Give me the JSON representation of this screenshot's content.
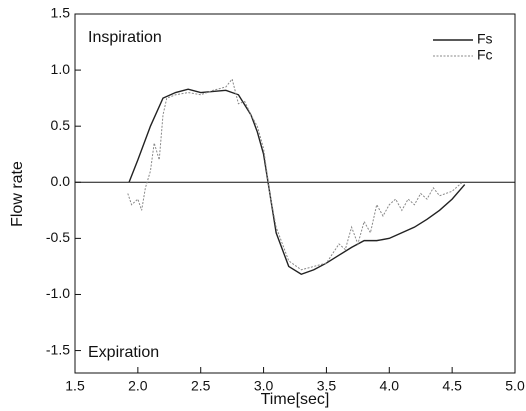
{
  "chart_data": {
    "type": "line",
    "xlabel": "Time[sec]",
    "ylabel": "Flow rate",
    "annotations": [
      "Inspiration",
      "Expiration"
    ],
    "xlim": [
      1.5,
      5.0
    ],
    "xticks": [
      1.5,
      {
        "value": 2,
        "label": "2.0"
      },
      2.5,
      {
        "value": 3,
        "label": "3.0"
      },
      3.5,
      {
        "value": 4,
        "label": "4.0"
      },
      4.5,
      {
        "value": 5,
        "label": "5.0"
      }
    ],
    "ylim": [
      -1.7,
      1.5
    ],
    "yticks": [
      {
        "value": -1.5,
        "label": "-1.5"
      },
      {
        "value": -1,
        "label": "-1.0"
      },
      {
        "value": -0.5,
        "label": "-0.5"
      },
      {
        "value": 0,
        "label": "0.0"
      },
      0.5,
      {
        "value": 1,
        "label": "1.0"
      },
      1.5
    ],
    "zero_line": true,
    "legend": "top-right",
    "series": [
      {
        "name": "Fs",
        "color": "#222222",
        "dash": "",
        "x": [
          1.93,
          2.0,
          2.1,
          2.2,
          2.3,
          2.4,
          2.5,
          2.6,
          2.7,
          2.8,
          2.9,
          2.95,
          3.0,
          3.05,
          3.1,
          3.2,
          3.3,
          3.4,
          3.5,
          3.6,
          3.7,
          3.8,
          3.9,
          4.0,
          4.1,
          4.2,
          4.3,
          4.4,
          4.5,
          4.6
        ],
        "values": [
          0,
          0.2,
          0.5,
          0.75,
          0.8,
          0.83,
          0.8,
          0.81,
          0.82,
          0.78,
          0.6,
          0.45,
          0.25,
          -0.1,
          -0.45,
          -0.75,
          -0.82,
          -0.78,
          -0.72,
          -0.65,
          -0.58,
          -0.52,
          -0.52,
          -0.5,
          -0.45,
          -0.4,
          -0.33,
          -0.25,
          -0.15,
          -0.02
        ]
      },
      {
        "name": "Fc",
        "color": "#888888",
        "dash": "2,1.5",
        "x": [
          1.92,
          1.95,
          2.0,
          2.03,
          2.06,
          2.1,
          2.13,
          2.17,
          2.2,
          2.23,
          2.3,
          2.4,
          2.5,
          2.6,
          2.7,
          2.75,
          2.8,
          2.85,
          2.9,
          2.95,
          3.0,
          3.05,
          3.1,
          3.2,
          3.3,
          3.4,
          3.5,
          3.6,
          3.65,
          3.7,
          3.75,
          3.8,
          3.85,
          3.9,
          3.95,
          4.0,
          4.05,
          4.1,
          4.15,
          4.2,
          4.25,
          4.3,
          4.35,
          4.4,
          4.5,
          4.58
        ],
        "values": [
          -0.1,
          -0.2,
          -0.15,
          -0.25,
          -0.05,
          0.1,
          0.35,
          0.2,
          0.6,
          0.75,
          0.78,
          0.8,
          0.78,
          0.82,
          0.85,
          0.92,
          0.7,
          0.72,
          0.6,
          0.5,
          0.3,
          -0.1,
          -0.4,
          -0.7,
          -0.78,
          -0.75,
          -0.72,
          -0.55,
          -0.6,
          -0.4,
          -0.55,
          -0.35,
          -0.45,
          -0.2,
          -0.3,
          -0.2,
          -0.15,
          -0.25,
          -0.15,
          -0.2,
          -0.1,
          -0.15,
          -0.05,
          -0.12,
          -0.08,
          0
        ]
      }
    ]
  }
}
